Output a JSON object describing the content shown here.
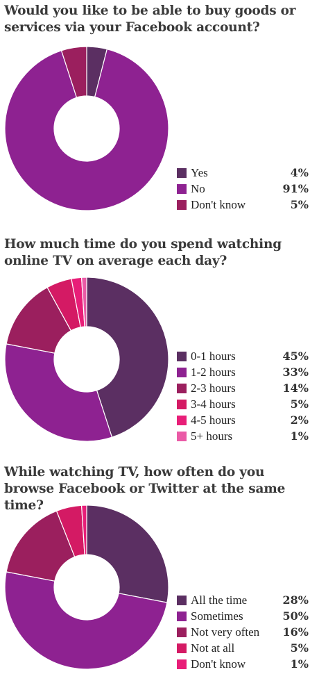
{
  "colors": {
    "dark_purple": "#5b2f62",
    "purple": "#8e2291",
    "magenta_dark": "#9b1f5e",
    "crimson": "#d41a64",
    "pink": "#e81e78",
    "light_pink": "#ea5aa6"
  },
  "chart_data": [
    {
      "type": "pie",
      "title": "Would you like to be able to buy goods or services via your Facebook account?",
      "categories": [
        "Yes",
        "No",
        "Don't know"
      ],
      "values": [
        4,
        91,
        5
      ],
      "value_labels": [
        "4%",
        "91%",
        "5%"
      ],
      "colors": [
        "#5b2f62",
        "#8e2291",
        "#9b1f5e"
      ],
      "legend_position": "bottom-right"
    },
    {
      "type": "pie",
      "title": "How much time do you spend watching online TV on average each day?",
      "categories": [
        "0-1 hours",
        "1-2 hours",
        "2-3 hours",
        "3-4 hours",
        "4-5 hours",
        "5+ hours"
      ],
      "values": [
        45,
        33,
        14,
        5,
        2,
        1
      ],
      "value_labels": [
        "45%",
        "33%",
        "14%",
        "5%",
        "2%",
        "1%"
      ],
      "colors": [
        "#5b2f62",
        "#8e2291",
        "#9b1f5e",
        "#d41a64",
        "#e81e78",
        "#ea5aa6"
      ],
      "legend_position": "bottom-right"
    },
    {
      "type": "pie",
      "title": "While watching TV, how often do you browse Facebook or Twitter at the same time?",
      "categories": [
        "All the time",
        "Sometimes",
        "Not very often",
        "Not at all",
        "Don't know"
      ],
      "values": [
        28,
        50,
        16,
        5,
        1
      ],
      "value_labels": [
        "28%",
        "50%",
        "16%",
        "5%",
        "1%"
      ],
      "colors": [
        "#5b2f62",
        "#8e2291",
        "#9b1f5e",
        "#d41a64",
        "#e81e78"
      ],
      "legend_position": "bottom-right"
    }
  ]
}
